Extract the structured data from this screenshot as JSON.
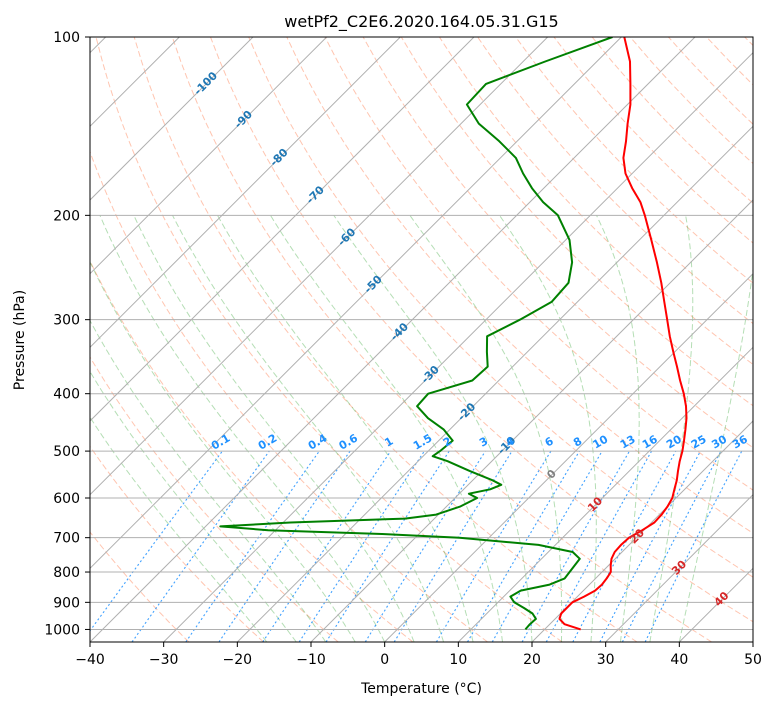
{
  "chart_data": {
    "type": "line",
    "subtype": "skew-T log-P diagram",
    "title": "wetPf2_C2E6.2020.164.05.31.G15",
    "xlabel": "Temperature (°C)",
    "ylabel": "Pressure (hPa)",
    "xlim": [
      -40,
      50
    ],
    "ylim": [
      1050,
      100
    ],
    "y_scale": "log",
    "grid": true,
    "x_ticks": [
      "−40",
      "−30",
      "−20",
      "−10",
      "0",
      "10",
      "20",
      "30",
      "40",
      "50"
    ],
    "y_ticks": [
      "100",
      "200",
      "300",
      "400",
      "500",
      "600",
      "700",
      "800",
      "900",
      "1000"
    ],
    "colors": {
      "temperature": "#ff0000",
      "dewpoint": "#008000",
      "isotherm": "#808080",
      "grid": "#b0b0b0",
      "dry_adiabat": "#ff7f50",
      "moist_adiabat": "#2ca02c",
      "mixing_ratio": "#1e90ff",
      "isotherm_label": "#1f77b4",
      "isotherm_label_warm": "#d62728",
      "frame": "#000000"
    },
    "isotherm_labels": [
      {
        "text": "-100",
        "t": -100,
        "p": 120
      },
      {
        "text": "-90",
        "t": -90,
        "p": 138
      },
      {
        "text": "-80",
        "t": -80,
        "p": 160
      },
      {
        "text": "-70",
        "t": -70,
        "p": 185
      },
      {
        "text": "-60",
        "t": -60,
        "p": 218
      },
      {
        "text": "-50",
        "t": -50,
        "p": 262
      },
      {
        "text": "-40",
        "t": -40,
        "p": 315
      },
      {
        "text": "-30",
        "t": -30,
        "p": 372
      },
      {
        "text": "-20",
        "t": -20,
        "p": 430
      },
      {
        "text": "-10",
        "t": -10,
        "p": 490
      },
      {
        "text": "0",
        "t": 0,
        "p": 548
      },
      {
        "text": "10",
        "t": 10,
        "p": 616
      },
      {
        "text": "20",
        "t": 20,
        "p": 697
      },
      {
        "text": "30",
        "t": 30,
        "p": 788
      },
      {
        "text": "40",
        "t": 40,
        "p": 890
      }
    ],
    "mixing_ratio_labels": [
      "0.1",
      "0.2",
      "0.4",
      "0.6",
      "1",
      "1.5",
      "2",
      "3",
      "4",
      "6",
      "8",
      "10",
      "13",
      "16",
      "20",
      "25",
      "30",
      "36"
    ],
    "mixing_ratio_values": [
      0.1,
      0.2,
      0.4,
      0.6,
      1,
      1.5,
      2,
      3,
      4,
      6,
      8,
      10,
      13,
      16,
      20,
      25,
      30,
      36
    ],
    "series": [
      {
        "name": "temperature",
        "points": [
          [
            1000,
            24.9
          ],
          [
            980,
            22.0
          ],
          [
            960,
            20.6
          ],
          [
            940,
            20.1
          ],
          [
            920,
            20.1
          ],
          [
            900,
            20.1
          ],
          [
            880,
            20.9
          ],
          [
            860,
            21.6
          ],
          [
            840,
            21.7
          ],
          [
            820,
            21.5
          ],
          [
            800,
            21.2
          ],
          [
            780,
            20.3
          ],
          [
            760,
            19.5
          ],
          [
            740,
            19.0
          ],
          [
            720,
            18.9
          ],
          [
            700,
            19.0
          ],
          [
            680,
            19.8
          ],
          [
            660,
            20.4
          ],
          [
            640,
            20.3
          ],
          [
            620,
            20.0
          ],
          [
            600,
            19.5
          ],
          [
            580,
            18.6
          ],
          [
            560,
            17.7
          ],
          [
            540,
            16.6
          ],
          [
            520,
            15.5
          ],
          [
            500,
            14.5
          ],
          [
            480,
            13.3
          ],
          [
            460,
            12.0
          ],
          [
            440,
            10.6
          ],
          [
            420,
            8.9
          ],
          [
            400,
            6.9
          ],
          [
            380,
            4.6
          ],
          [
            360,
            2.3
          ],
          [
            340,
            -0.2
          ],
          [
            320,
            -2.8
          ],
          [
            300,
            -5.4
          ],
          [
            280,
            -8.2
          ],
          [
            260,
            -11.2
          ],
          [
            240,
            -14.6
          ],
          [
            220,
            -18.4
          ],
          [
            200,
            -22.6
          ],
          [
            190,
            -25.0
          ],
          [
            180,
            -28.0
          ],
          [
            170,
            -30.9
          ],
          [
            160,
            -33.3
          ],
          [
            150,
            -35.2
          ],
          [
            140,
            -37.4
          ],
          [
            130,
            -39.6
          ],
          [
            120,
            -42.4
          ],
          [
            110,
            -45.5
          ],
          [
            100,
            -49.6
          ]
        ]
      },
      {
        "name": "dewpoint",
        "points": [
          [
            1000,
            17.4
          ],
          [
            980,
            17.3
          ],
          [
            960,
            17.4
          ],
          [
            940,
            16.2
          ],
          [
            920,
            14.3
          ],
          [
            900,
            12.2
          ],
          [
            880,
            10.9
          ],
          [
            860,
            11.5
          ],
          [
            840,
            14.6
          ],
          [
            820,
            15.8
          ],
          [
            800,
            15.6
          ],
          [
            780,
            15.4
          ],
          [
            760,
            15.2
          ],
          [
            740,
            13.3
          ],
          [
            720,
            7.7
          ],
          [
            700,
            -4.0
          ],
          [
            690,
            -15.0
          ],
          [
            680,
            -31.0
          ],
          [
            670,
            -38.0
          ],
          [
            660,
            -29.0
          ],
          [
            650,
            -14.0
          ],
          [
            640,
            -10.3
          ],
          [
            620,
            -8.1
          ],
          [
            600,
            -7.0
          ],
          [
            590,
            -8.7
          ],
          [
            580,
            -6.4
          ],
          [
            570,
            -5.5
          ],
          [
            560,
            -7.3
          ],
          [
            540,
            -11.7
          ],
          [
            520,
            -16.0
          ],
          [
            510,
            -18.7
          ],
          [
            500,
            -18.4
          ],
          [
            480,
            -18.1
          ],
          [
            460,
            -20.8
          ],
          [
            440,
            -24.5
          ],
          [
            420,
            -27.6
          ],
          [
            400,
            -27.8
          ],
          [
            380,
            -23.6
          ],
          [
            360,
            -23.4
          ],
          [
            340,
            -25.5
          ],
          [
            320,
            -27.6
          ],
          [
            300,
            -25.4
          ],
          [
            280,
            -23.5
          ],
          [
            260,
            -23.8
          ],
          [
            240,
            -26.1
          ],
          [
            220,
            -29.5
          ],
          [
            200,
            -34.4
          ],
          [
            190,
            -38.2
          ],
          [
            180,
            -41.6
          ],
          [
            170,
            -44.8
          ],
          [
            160,
            -47.9
          ],
          [
            150,
            -52.4
          ],
          [
            140,
            -57.6
          ],
          [
            130,
            -61.8
          ],
          [
            120,
            -62.0
          ],
          [
            110,
            -57.0
          ],
          [
            100,
            -51.2
          ]
        ]
      }
    ]
  }
}
